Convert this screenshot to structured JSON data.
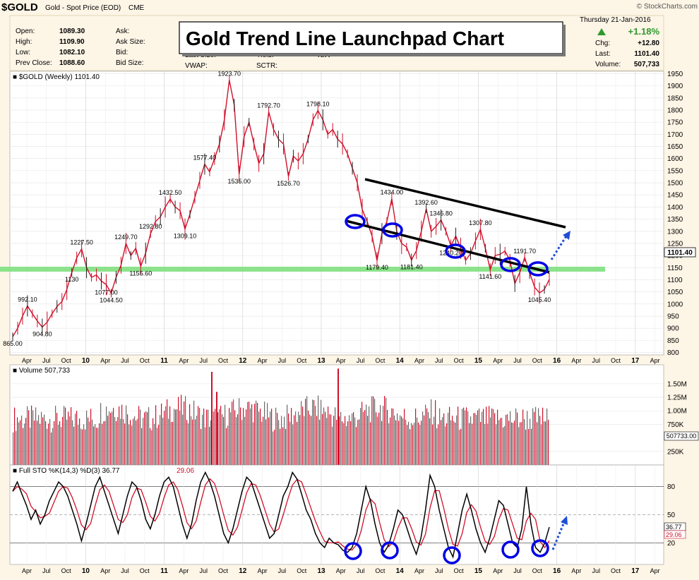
{
  "header": {
    "symbol": "$GOLD",
    "name": "Gold - Spot Price (EOD)",
    "exchange": "CME",
    "watermark": "© StockCharts.com",
    "date_line": "Thursday   21-Jan-2016",
    "left_fields": [
      {
        "label": "Open:",
        "value": "1089.30"
      },
      {
        "label": "High:",
        "value": "1109.90"
      },
      {
        "label": "Low:",
        "value": "1082.10"
      },
      {
        "label": "Prev Close:",
        "value": "1088.60"
      }
    ],
    "mid_fields": [
      {
        "label": "Ask:",
        "value": ""
      },
      {
        "label": "Ask Size:",
        "value": ""
      },
      {
        "label": "Bid:",
        "value": ""
      },
      {
        "label": "Bid Size:",
        "value": ""
      },
      {
        "label": "Last Size:",
        "value": ""
      },
      {
        "label": "VWAP:",
        "value": ""
      }
    ],
    "extra_fields": [
      {
        "label": "Yield:",
        "value": "N/A"
      },
      {
        "label": "SCTR:",
        "value": ""
      }
    ],
    "pct_change": "+1.18%",
    "right_fields": [
      {
        "label": "Chg:",
        "value": "+12.80"
      },
      {
        "label": "Last:",
        "value": "1101.40"
      },
      {
        "label": "Volume:",
        "value": "507,733"
      }
    ],
    "overlay_title": "Gold Trend Line Launchpad Chart",
    "up_color": "#2e9a2e"
  },
  "chart_data": [
    {
      "type": "line",
      "panel": "price",
      "legend": "$GOLD (Weekly) 1101.40",
      "ylim": [
        790,
        1960
      ],
      "y_ticks": [
        "1950",
        "1900",
        "1850",
        "1800",
        "1750",
        "1700",
        "1650",
        "1600",
        "1550",
        "1500",
        "1450",
        "1400",
        "1350",
        "1300",
        "1250",
        "1200",
        "1150",
        "1100",
        "1050",
        "1000",
        "950",
        "900",
        "850",
        "800"
      ],
      "x_ticks": [
        "Apr",
        "Jul",
        "Oct",
        "10",
        "Apr",
        "Jul",
        "Oct",
        "11",
        "Apr",
        "Jul",
        "Oct",
        "12",
        "Apr",
        "Jul",
        "Oct",
        "13",
        "Apr",
        "Jul",
        "Oct",
        "14",
        "Apr",
        "Jul",
        "Oct",
        "15",
        "Apr",
        "Jul",
        "Oct",
        "16",
        "Apr",
        "Jul",
        "Oct",
        "17",
        "Apr"
      ],
      "last_value_label": "1101.40",
      "series": [
        {
          "values": [
            865,
            900,
            950,
            992.1,
            960,
            930,
            904.8,
            925,
            960,
            990,
            1010,
            1060,
            1130,
            1190,
            1227.5,
            1150,
            1110,
            1120,
            1095,
            1080,
            1044.5,
            1110,
            1160,
            1249.7,
            1200,
            1230,
            1155.6,
            1210,
            1290,
            1340,
            1360,
            1400,
            1432.5,
            1400,
            1385,
            1309.1,
            1370,
            1440,
            1510,
            1577.4,
            1545,
            1600,
            1660,
            1760,
            1923.7,
            1820,
            1535,
            1690,
            1750,
            1660,
            1580,
            1620,
            1792.7,
            1720,
            1680,
            1660,
            1526.7,
            1610,
            1590,
            1620,
            1680,
            1760,
            1798.1,
            1760,
            1700,
            1720,
            1680,
            1660,
            1620,
            1560,
            1500,
            1390,
            1340,
            1280,
            1179.4,
            1290,
            1340,
            1434,
            1300,
            1250,
            1235,
            1181.4,
            1220,
            1300,
            1392.6,
            1300,
            1320,
            1346.8,
            1300,
            1240.2,
            1280,
            1230,
            1180,
            1208,
            1260,
            1307.8,
            1230,
            1141.6,
            1200,
            1205,
            1218,
            1180,
            1085,
            1130,
            1191.7,
            1130,
            1070,
            1045.4,
            1060,
            1101.4
          ]
        }
      ],
      "annotations": [
        "1923.70",
        "1792.70",
        "1798.10",
        "1577.40",
        "1535.00",
        "1526.70",
        "1432.50",
        "1309.10",
        "1249.70",
        "1227.50",
        "1155.60",
        "1044.50",
        "992.10",
        "904.80",
        "865.00",
        "1434.00",
        "1392.60",
        "1346.80",
        "1307.80",
        "1292.80",
        "1240.20",
        "1191.70",
        "1179.40",
        "1181.40",
        "1141.60",
        "1130",
        "1045.40",
        "1077.00"
      ],
      "horizontal_support_color": "#7fe07f",
      "trend_line_color": "#000000",
      "circle_color": "#0000e6",
      "arrow_color": "#1f4fd8",
      "series_color": "#d0102a"
    },
    {
      "type": "bar",
      "panel": "volume",
      "legend": "Volume 507,733",
      "y_ticks": [
        "1.50M",
        "1.25M",
        "1.00M",
        "750K",
        "250K"
      ],
      "last_value_label": "507733.00",
      "ylim": [
        0,
        1850000
      ],
      "colors": {
        "up": "#d0102a",
        "down": "#6a6a6a"
      }
    },
    {
      "type": "line",
      "panel": "stochastic",
      "legend_k": "Full STO %K(14,3) %D(3) 36.77",
      "legend_d": "29.06",
      "ylim": [
        0,
        100
      ],
      "y_ticks": [
        "80",
        "50",
        "20"
      ],
      "last_k_label": "36.77",
      "last_d_label": "29.06",
      "x_ticks": [
        "Apr",
        "Jul",
        "Oct",
        "10",
        "Apr",
        "Jul",
        "Oct",
        "11",
        "Apr",
        "Jul",
        "Oct",
        "12",
        "Apr",
        "Jul",
        "Oct",
        "13",
        "Apr",
        "Jul",
        "Oct",
        "14",
        "Apr",
        "Jul",
        "Oct",
        "15",
        "Apr",
        "Jul",
        "Oct",
        "16",
        "Apr",
        "Jul",
        "Oct",
        "17",
        "Apr"
      ],
      "series": [
        {
          "name": "%K",
          "values": [
            75,
            85,
            72,
            60,
            45,
            55,
            40,
            50,
            65,
            75,
            85,
            80,
            70,
            55,
            40,
            22,
            40,
            60,
            80,
            90,
            75,
            60,
            45,
            30,
            50,
            70,
            85,
            80,
            65,
            45,
            35,
            50,
            70,
            85,
            90,
            80,
            60,
            40,
            25,
            40,
            65,
            85,
            95,
            85,
            70,
            50,
            30,
            20,
            35,
            55,
            75,
            90,
            85,
            70,
            55,
            40,
            25,
            30,
            50,
            70,
            80,
            95,
            88,
            72,
            55,
            45,
            30,
            20,
            15,
            25,
            20,
            18,
            12,
            10,
            15,
            30,
            55,
            80,
            65,
            40,
            20,
            10,
            18,
            35,
            55,
            50,
            35,
            20,
            8,
            25,
            55,
            92,
            80,
            55,
            35,
            15,
            5,
            30,
            55,
            72,
            55,
            35,
            20,
            10,
            25,
            45,
            65,
            60,
            40,
            20,
            15,
            35,
            80,
            40,
            15,
            10,
            20,
            36.77
          ]
        }
      ],
      "colors": {
        "k": "#000000",
        "d": "#d0102a"
      }
    }
  ]
}
